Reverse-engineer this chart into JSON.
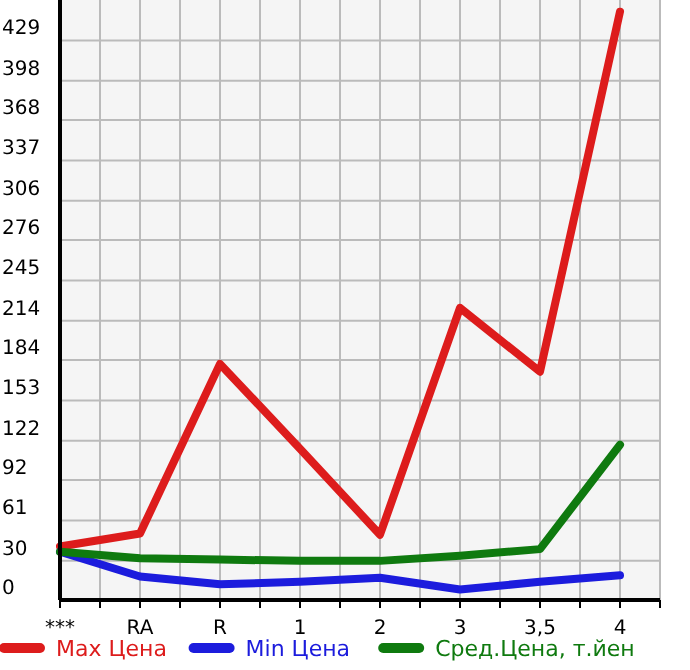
{
  "chart_data": {
    "type": "line",
    "categories": [
      "***",
      "RA",
      "R",
      "1",
      "2",
      "3",
      "3,5",
      "4"
    ],
    "series": [
      {
        "name": "Max Цена",
        "color": "#dd1c1c",
        "values": [
          41,
          51,
          181,
          116,
          50,
          224,
          175,
          451
        ]
      },
      {
        "name": "Min Цена",
        "color": "#1c1cdd",
        "values": [
          37,
          18,
          12,
          14,
          17,
          8,
          14,
          19
        ]
      },
      {
        "name": "Сред.Цена, т.йен",
        "color": "#0f7a0f",
        "values": [
          37,
          32,
          31,
          30,
          30,
          34,
          39,
          119
        ]
      }
    ],
    "ylim": [
      0,
      460
    ],
    "yticks": [
      0,
      30,
      61,
      92,
      122,
      153,
      184,
      214,
      245,
      276,
      306,
      337,
      368,
      398,
      429
    ],
    "grid": true,
    "legend": "bottom",
    "marker": "none",
    "line_style": "solid"
  }
}
